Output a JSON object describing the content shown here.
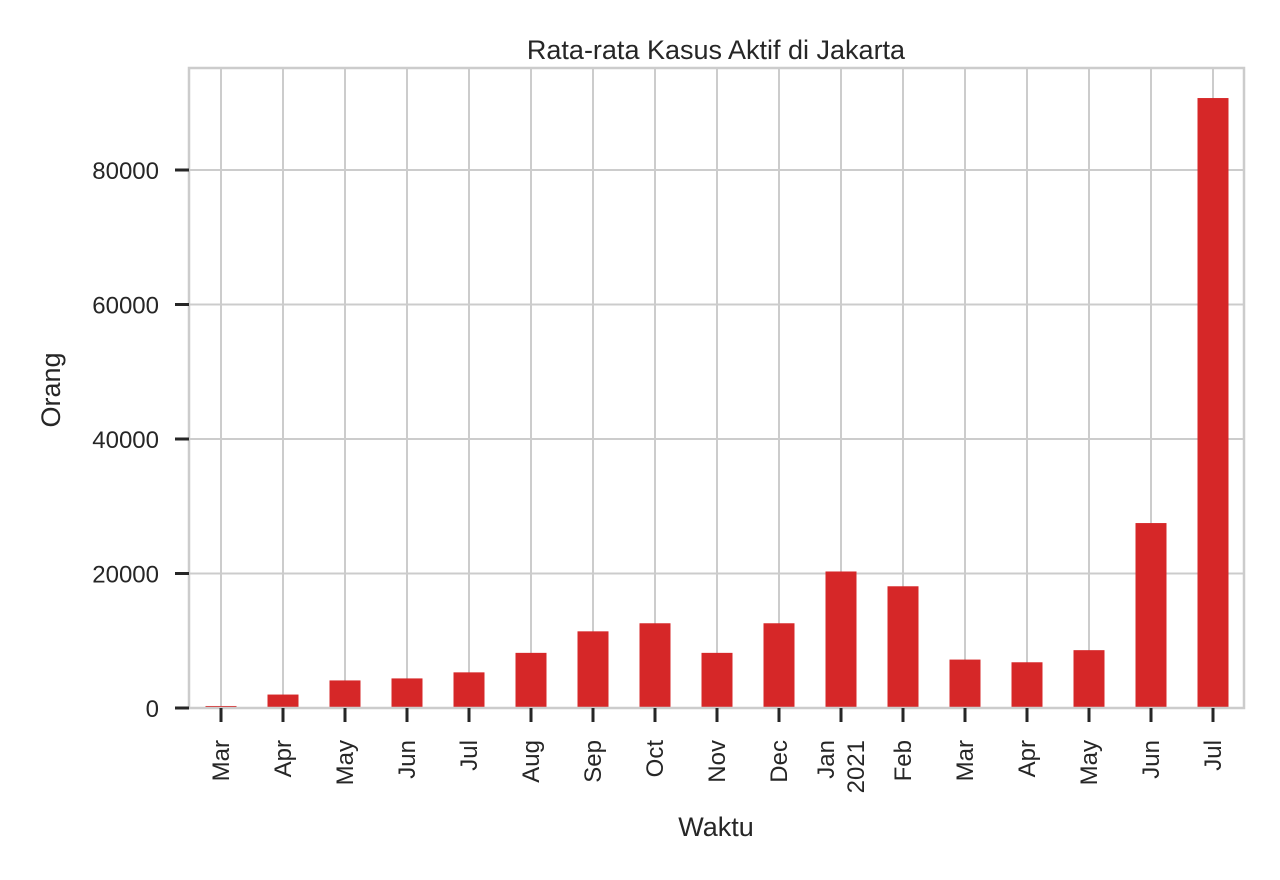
{
  "chart_data": {
    "type": "bar",
    "title": "Rata-rata Kasus Aktif di Jakarta",
    "xlabel": "Waktu",
    "ylabel": "Orang",
    "categories": [
      "Mar",
      "Apr",
      "May",
      "Jun",
      "Jul",
      "Aug",
      "Sep",
      "Oct",
      "Nov",
      "Dec",
      "Jan\n2021",
      "Feb",
      "Mar",
      "Apr",
      "May",
      "Jun",
      "Jul"
    ],
    "values": [
      300,
      2000,
      4100,
      4400,
      5300,
      8200,
      11400,
      12600,
      8200,
      12600,
      20300,
      18100,
      7200,
      6800,
      8600,
      27500,
      90700
    ],
    "yticks": [
      0,
      20000,
      40000,
      60000,
      80000
    ],
    "ytick_labels": [
      "0",
      "20000",
      "40000",
      "60000",
      "80000"
    ],
    "ylim": [
      0,
      95000
    ],
    "bar_color": "#d62728",
    "grid": true
  }
}
